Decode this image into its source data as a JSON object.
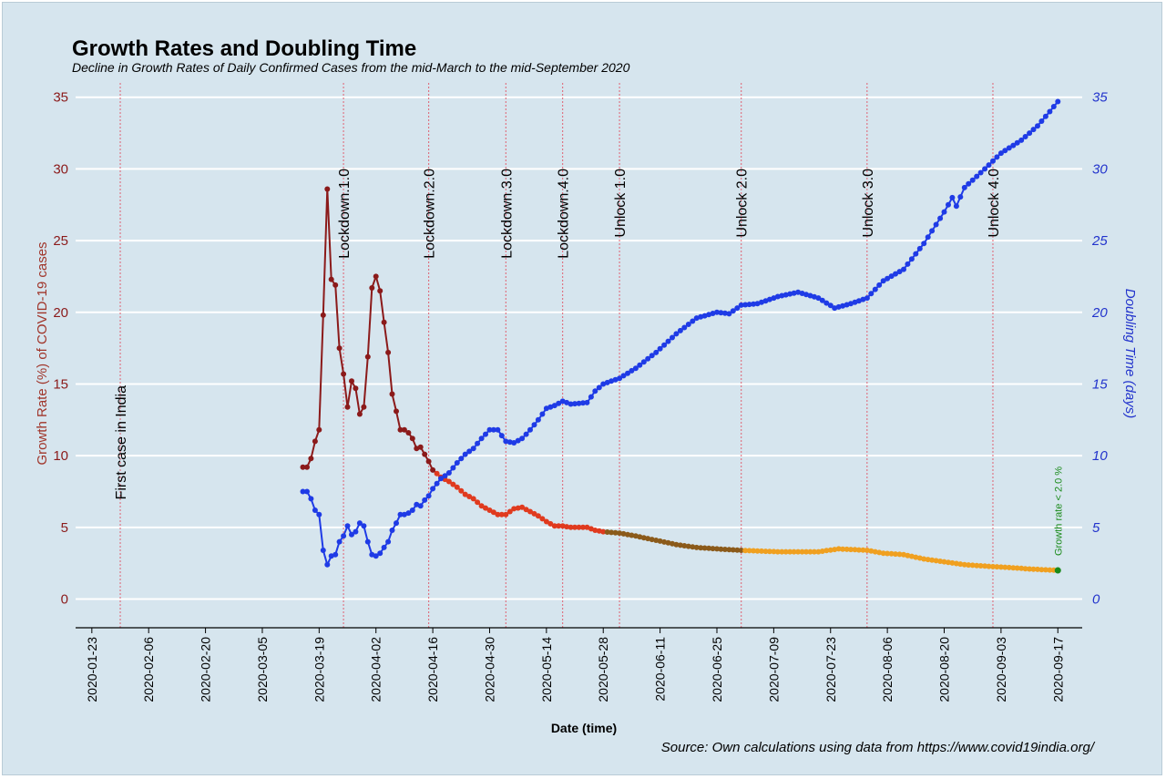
{
  "chart_data": {
    "type": "line",
    "title": "Growth Rates and Doubling Time",
    "subtitle": "Decline in Growth Rates of Daily Confirmed Cases from the mid-March to the mid-September 2020",
    "xlabel": "Date (time)",
    "ylabel_left": "Growth Rate (%) of COVID-19 cases",
    "ylabel_right": "Doubling Time (days)",
    "source": "Source: Own calculations using data from https://www.covid19india.org/",
    "x_ticks": [
      "2020-01-23",
      "2020-02-06",
      "2020-02-20",
      "2020-03-05",
      "2020-03-19",
      "2020-04-02",
      "2020-04-16",
      "2020-04-30",
      "2020-05-14",
      "2020-05-28",
      "2020-06-11",
      "2020-06-25",
      "2020-07-09",
      "2020-07-23",
      "2020-08-06",
      "2020-08-20",
      "2020-09-03",
      "2020-09-17"
    ],
    "y_left_ticks": [
      "0",
      "5",
      "10",
      "15",
      "20",
      "25",
      "30",
      "35"
    ],
    "y_right_ticks": [
      "0",
      "5",
      "10",
      "15",
      "20",
      "25",
      "30",
      "35"
    ],
    "xlim": [
      "2020-01-19",
      "2020-09-23"
    ],
    "ylim_left": [
      -2,
      36
    ],
    "ylim_right": [
      -2,
      36
    ],
    "grid": "horizontal",
    "events": [
      {
        "date": "2020-01-30",
        "label": "First case in India"
      },
      {
        "date": "2020-03-25",
        "label": "Lockdown.1.0"
      },
      {
        "date": "2020-04-15",
        "label": "Lockdown.2.0"
      },
      {
        "date": "2020-05-04",
        "label": "Lockdown.3.0"
      },
      {
        "date": "2020-05-18",
        "label": "Lockdown.4.0"
      },
      {
        "date": "2020-06-01",
        "label": "Unlock 1.0"
      },
      {
        "date": "2020-07-01",
        "label": "Unlock 2.0"
      },
      {
        "date": "2020-08-01",
        "label": "Unlock 3.0"
      },
      {
        "date": "2020-09-01",
        "label": "Unlock 4.0"
      }
    ],
    "annotation": {
      "text": "Growth rate < 2.0 %",
      "date": "2020-09-17",
      "value": 2.0
    },
    "colors": {
      "doubling": "#1f3be6",
      "growth_early": "#8b1a1a",
      "growth_mid": "#e03a1e",
      "growth_late": "#8b5a1a",
      "growth_final": "#f0a020",
      "annotation": "#1a8a1a"
    },
    "series": [
      {
        "name": "Growth Rate (%)",
        "axis": "left",
        "points": [
          [
            "2020-03-15",
            9.2
          ],
          [
            "2020-03-16",
            9.2
          ],
          [
            "2020-03-17",
            9.8
          ],
          [
            "2020-03-18",
            11.0
          ],
          [
            "2020-03-19",
            11.8
          ],
          [
            "2020-03-20",
            19.8
          ],
          [
            "2020-03-21",
            28.6
          ],
          [
            "2020-03-22",
            22.3
          ],
          [
            "2020-03-23",
            21.9
          ],
          [
            "2020-03-24",
            17.5
          ],
          [
            "2020-03-25",
            15.7
          ],
          [
            "2020-03-26",
            13.4
          ],
          [
            "2020-03-27",
            15.2
          ],
          [
            "2020-03-28",
            14.7
          ],
          [
            "2020-03-29",
            12.9
          ],
          [
            "2020-03-30",
            13.4
          ],
          [
            "2020-03-31",
            16.9
          ],
          [
            "2020-04-01",
            21.7
          ],
          [
            "2020-04-02",
            22.5
          ],
          [
            "2020-04-03",
            21.5
          ],
          [
            "2020-04-04",
            19.3
          ],
          [
            "2020-04-05",
            17.2
          ],
          [
            "2020-04-06",
            14.3
          ],
          [
            "2020-04-07",
            13.1
          ],
          [
            "2020-04-08",
            11.8
          ],
          [
            "2020-04-09",
            11.8
          ],
          [
            "2020-04-10",
            11.6
          ],
          [
            "2020-04-11",
            11.2
          ],
          [
            "2020-04-12",
            10.5
          ],
          [
            "2020-04-13",
            10.6
          ],
          [
            "2020-04-14",
            10.1
          ],
          [
            "2020-04-15",
            9.6
          ],
          [
            "2020-04-16",
            9.0
          ],
          [
            "2020-04-18",
            8.5
          ],
          [
            "2020-04-20",
            8.2
          ],
          [
            "2020-04-22",
            7.8
          ],
          [
            "2020-04-24",
            7.3
          ],
          [
            "2020-04-26",
            7.0
          ],
          [
            "2020-04-28",
            6.5
          ],
          [
            "2020-04-30",
            6.2
          ],
          [
            "2020-05-02",
            5.9
          ],
          [
            "2020-05-04",
            5.9
          ],
          [
            "2020-05-06",
            6.3
          ],
          [
            "2020-05-08",
            6.4
          ],
          [
            "2020-05-10",
            6.1
          ],
          [
            "2020-05-12",
            5.8
          ],
          [
            "2020-05-14",
            5.4
          ],
          [
            "2020-05-16",
            5.1
          ],
          [
            "2020-05-18",
            5.1
          ],
          [
            "2020-05-20",
            5.0
          ],
          [
            "2020-05-24",
            5.0
          ],
          [
            "2020-05-26",
            4.8
          ],
          [
            "2020-05-28",
            4.7
          ],
          [
            "2020-06-01",
            4.6
          ],
          [
            "2020-06-05",
            4.4
          ],
          [
            "2020-06-10",
            4.1
          ],
          [
            "2020-06-15",
            3.8
          ],
          [
            "2020-06-20",
            3.6
          ],
          [
            "2020-06-25",
            3.5
          ],
          [
            "2020-07-01",
            3.4
          ],
          [
            "2020-07-10",
            3.3
          ],
          [
            "2020-07-20",
            3.3
          ],
          [
            "2020-07-25",
            3.5
          ],
          [
            "2020-08-01",
            3.4
          ],
          [
            "2020-08-05",
            3.2
          ],
          [
            "2020-08-10",
            3.1
          ],
          [
            "2020-08-15",
            2.8
          ],
          [
            "2020-08-20",
            2.6
          ],
          [
            "2020-08-25",
            2.4
          ],
          [
            "2020-08-30",
            2.3
          ],
          [
            "2020-09-05",
            2.2
          ],
          [
            "2020-09-10",
            2.1
          ],
          [
            "2020-09-17",
            2.0
          ]
        ]
      },
      {
        "name": "Doubling Time (days)",
        "axis": "right",
        "points": [
          [
            "2020-03-15",
            7.5
          ],
          [
            "2020-03-16",
            7.5
          ],
          [
            "2020-03-17",
            7.0
          ],
          [
            "2020-03-18",
            6.2
          ],
          [
            "2020-03-19",
            5.9
          ],
          [
            "2020-03-20",
            3.4
          ],
          [
            "2020-03-21",
            2.4
          ],
          [
            "2020-03-22",
            3.0
          ],
          [
            "2020-03-23",
            3.1
          ],
          [
            "2020-03-24",
            4.0
          ],
          [
            "2020-03-25",
            4.4
          ],
          [
            "2020-03-26",
            5.1
          ],
          [
            "2020-03-27",
            4.5
          ],
          [
            "2020-03-28",
            4.7
          ],
          [
            "2020-03-29",
            5.3
          ],
          [
            "2020-03-30",
            5.1
          ],
          [
            "2020-03-31",
            4.0
          ],
          [
            "2020-04-01",
            3.1
          ],
          [
            "2020-04-02",
            3.0
          ],
          [
            "2020-04-03",
            3.2
          ],
          [
            "2020-04-04",
            3.6
          ],
          [
            "2020-04-05",
            4.0
          ],
          [
            "2020-04-06",
            4.8
          ],
          [
            "2020-04-07",
            5.3
          ],
          [
            "2020-04-08",
            5.9
          ],
          [
            "2020-04-09",
            5.9
          ],
          [
            "2020-04-10",
            6.0
          ],
          [
            "2020-04-11",
            6.2
          ],
          [
            "2020-04-12",
            6.6
          ],
          [
            "2020-04-13",
            6.5
          ],
          [
            "2020-04-14",
            6.9
          ],
          [
            "2020-04-15",
            7.2
          ],
          [
            "2020-04-16",
            7.7
          ],
          [
            "2020-04-18",
            8.4
          ],
          [
            "2020-04-20",
            8.8
          ],
          [
            "2020-04-22",
            9.5
          ],
          [
            "2020-04-24",
            10.1
          ],
          [
            "2020-04-26",
            10.5
          ],
          [
            "2020-04-28",
            11.2
          ],
          [
            "2020-04-30",
            11.8
          ],
          [
            "2020-05-02",
            11.8
          ],
          [
            "2020-05-04",
            11.0
          ],
          [
            "2020-05-06",
            10.9
          ],
          [
            "2020-05-08",
            11.2
          ],
          [
            "2020-05-10",
            11.8
          ],
          [
            "2020-05-12",
            12.5
          ],
          [
            "2020-05-14",
            13.3
          ],
          [
            "2020-05-16",
            13.5
          ],
          [
            "2020-05-18",
            13.8
          ],
          [
            "2020-05-20",
            13.6
          ],
          [
            "2020-05-24",
            13.7
          ],
          [
            "2020-05-26",
            14.5
          ],
          [
            "2020-05-28",
            15.0
          ],
          [
            "2020-06-01",
            15.4
          ],
          [
            "2020-06-05",
            16.1
          ],
          [
            "2020-06-10",
            17.2
          ],
          [
            "2020-06-15",
            18.5
          ],
          [
            "2020-06-20",
            19.6
          ],
          [
            "2020-06-25",
            20.0
          ],
          [
            "2020-06-28",
            19.9
          ],
          [
            "2020-07-01",
            20.5
          ],
          [
            "2020-07-05",
            20.6
          ],
          [
            "2020-07-10",
            21.1
          ],
          [
            "2020-07-15",
            21.4
          ],
          [
            "2020-07-20",
            21.0
          ],
          [
            "2020-07-24",
            20.3
          ],
          [
            "2020-07-28",
            20.6
          ],
          [
            "2020-08-01",
            21.0
          ],
          [
            "2020-08-05",
            22.2
          ],
          [
            "2020-08-10",
            23.0
          ],
          [
            "2020-08-15",
            24.8
          ],
          [
            "2020-08-20",
            27.0
          ],
          [
            "2020-08-22",
            28.0
          ],
          [
            "2020-08-23",
            27.4
          ],
          [
            "2020-08-25",
            28.7
          ],
          [
            "2020-08-30",
            30.0
          ],
          [
            "2020-09-03",
            31.1
          ],
          [
            "2020-09-08",
            32.0
          ],
          [
            "2020-09-12",
            33.0
          ],
          [
            "2020-09-15",
            34.0
          ],
          [
            "2020-09-17",
            34.7
          ]
        ]
      }
    ]
  }
}
